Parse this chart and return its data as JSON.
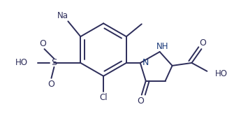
{
  "bg_color": "#ffffff",
  "line_color": "#2d2d5a",
  "text_color": "#2d2d5a",
  "line_width": 1.4,
  "figsize": [
    3.35,
    1.63
  ],
  "dpi": 100,
  "xlim": [
    0,
    335
  ],
  "ylim": [
    0,
    163
  ]
}
